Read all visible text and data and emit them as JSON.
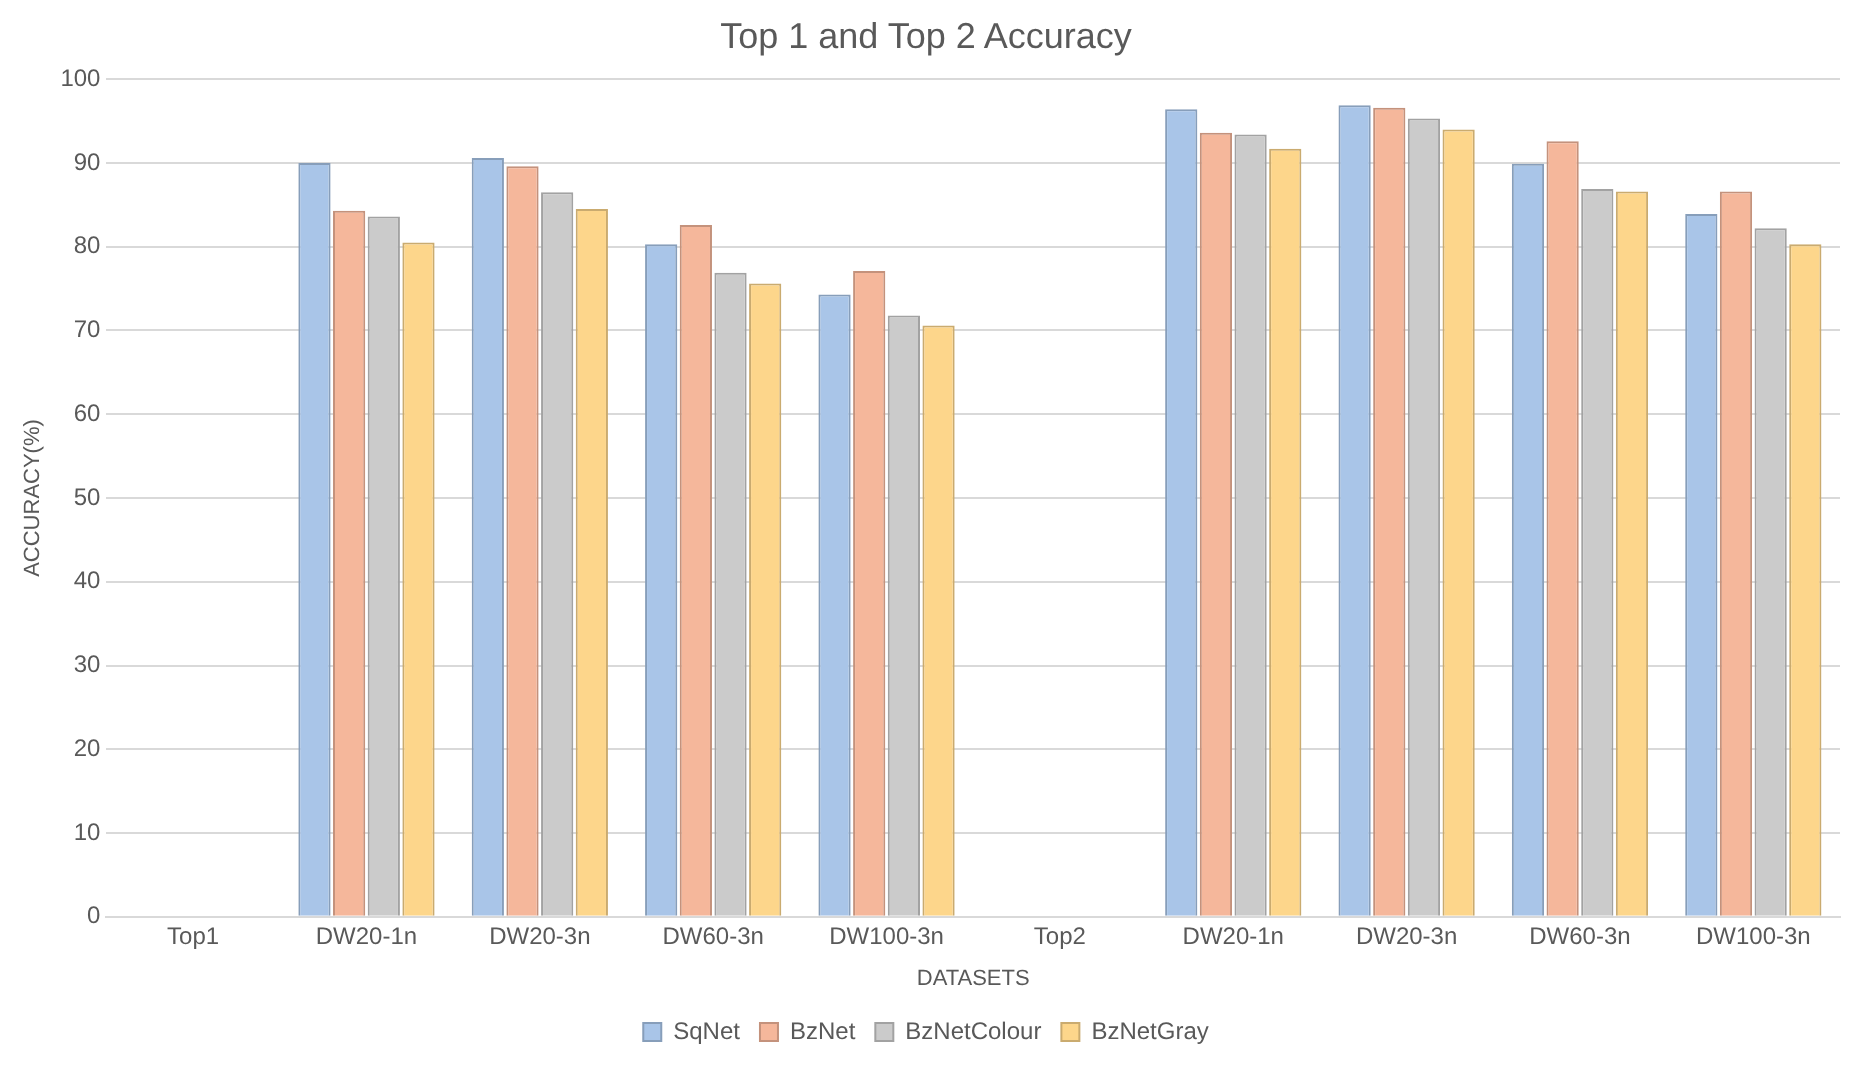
{
  "chart_data": {
    "type": "bar",
    "title": "Top 1 and Top 2 Accuracy",
    "xlabel": "DATASETS",
    "ylabel": "ACCURACY(%)",
    "categories": [
      "Top1",
      "DW20-1n",
      "DW20-3n",
      "DW60-3n",
      "DW100-3n",
      "Top2",
      "DW20-1n",
      "DW20-3n",
      "DW60-3n",
      "DW100-3n"
    ],
    "series": [
      {
        "name": "SqNet",
        "color": "#a9c5e8",
        "values": [
          null,
          90,
          90.6,
          80.3,
          74.3,
          null,
          96.4,
          96.9,
          89.9,
          83.9
        ]
      },
      {
        "name": "BzNet",
        "color": "#f5b79b",
        "values": [
          null,
          84.3,
          89.6,
          82.6,
          77.1,
          null,
          93.6,
          96.6,
          92.6,
          86.6
        ]
      },
      {
        "name": "BzNetColour",
        "color": "#cbcbcb",
        "values": [
          null,
          83.6,
          86.5,
          76.9,
          71.8,
          null,
          93.4,
          95.3,
          86.9,
          82.2
        ]
      },
      {
        "name": "BzNetGray",
        "color": "#fdd68b",
        "values": [
          null,
          80.5,
          84.5,
          75.6,
          70.6,
          null,
          91.7,
          94.0,
          86.6,
          80.3
        ]
      }
    ],
    "ylim": [
      0,
      100
    ],
    "yticks": [
      0,
      10,
      20,
      30,
      40,
      50,
      60,
      70,
      80,
      90,
      100
    ],
    "grid": "y",
    "legend": "bottom"
  }
}
